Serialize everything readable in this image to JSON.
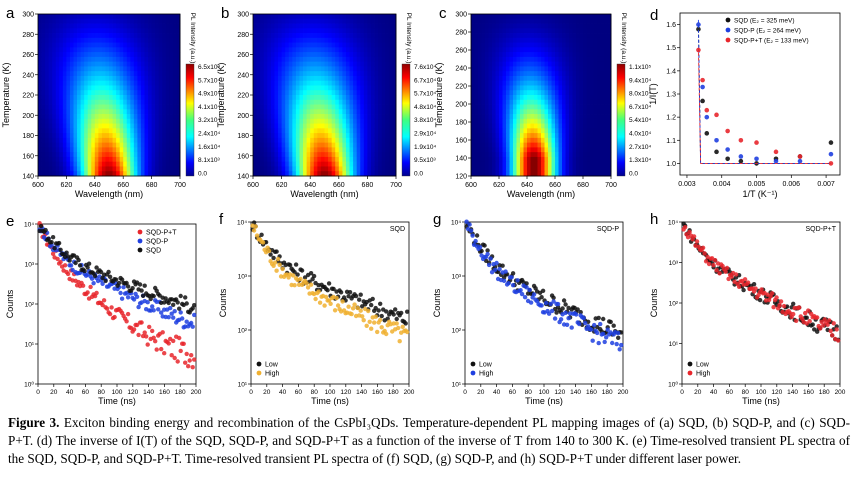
{
  "figure": {
    "mapping_panels": [
      {
        "letter": "a",
        "ylabel": "Temperature (K)",
        "xlabel": "Wavelength (nm)",
        "cbar_label": "PL Intensity (a.u.)",
        "cbar_ticks": [
          "6.5x10⁴",
          "5.7x10⁴",
          "4.9x10⁴",
          "4.1x10⁴",
          "3.2x10⁴",
          "2.4x10⁴",
          "1.6x10⁴",
          "8.1x10³",
          "0.0"
        ]
      },
      {
        "letter": "b",
        "ylabel": "Temperature (K)",
        "xlabel": "Wavelength (nm)",
        "cbar_label": "PL Intensity (a.u.)",
        "cbar_ticks": [
          "7.6x10⁴",
          "6.7x10⁴",
          "5.7x10⁴",
          "4.8x10⁴",
          "3.8x10⁴",
          "2.9x10⁴",
          "1.9x10⁴",
          "9.5x10³",
          "0.0"
        ]
      },
      {
        "letter": "c",
        "ylabel": "Temperature (K)",
        "xlabel": "Wavelength (nm)",
        "cbar_label": "PL Intensity (a.u.)",
        "cbar_ticks": [
          "1.1x10⁵",
          "9.4x10⁴",
          "8.0x10⁴",
          "6.7x10⁴",
          "5.4x10⁴",
          "4.0x10⁴",
          "2.7x10⁴",
          "1.3x10⁴",
          "0.0"
        ]
      }
    ],
    "panel_d": {
      "letter": "d",
      "ylabel": "1/I(T)",
      "xlabel": "1/T (K⁻¹)",
      "legend": [
        "SQD (E₂ = 325 meV)",
        "SQD-P (E₂ = 264 meV)",
        "SQD-P+T (E₂ = 133 meV)"
      ]
    },
    "decay_panels": [
      {
        "letter": "e",
        "title": "",
        "legend": [
          "SQD-P+T",
          "SQD-P",
          "SQD"
        ]
      },
      {
        "letter": "f",
        "title": "SQD",
        "legend": [
          "Low",
          "High"
        ]
      },
      {
        "letter": "g",
        "title": "SQD-P",
        "legend": [
          "Low",
          "High"
        ]
      },
      {
        "letter": "h",
        "title": "SQD-P+T",
        "legend": [
          "Low",
          "High"
        ]
      }
    ],
    "decay_xlabel": "Time (ns)",
    "decay_ylabel": "Counts",
    "colors": {
      "sqd": "#111111",
      "sqd_p": "#1f3fe0",
      "sqd_pt": "#e8262c",
      "high_f": "#f0b030"
    },
    "chart_data": [
      {
        "type": "heatmap",
        "panel": "a",
        "xlabel": "Wavelength (nm)",
        "ylabel": "Temperature (K)",
        "xlim": [
          600,
          700
        ],
        "ylim": [
          140,
          300
        ],
        "x_ticks": [
          600,
          620,
          640,
          660,
          680,
          700
        ],
        "y_ticks": [
          140,
          160,
          180,
          200,
          220,
          240,
          260,
          280,
          300
        ],
        "peak_nm_at_140K": 650,
        "peak_nm_at_300K": 640,
        "zmax": 65000
      },
      {
        "type": "heatmap",
        "panel": "b",
        "xlabel": "Wavelength (nm)",
        "ylabel": "Temperature (K)",
        "xlim": [
          600,
          700
        ],
        "ylim": [
          140,
          300
        ],
        "x_ticks": [
          600,
          620,
          640,
          660,
          680,
          700
        ],
        "y_ticks": [
          140,
          160,
          180,
          200,
          220,
          240,
          260,
          280,
          300
        ],
        "peak_nm_at_140K": 650,
        "peak_nm_at_300K": 640,
        "zmax": 76000
      },
      {
        "type": "heatmap",
        "panel": "c",
        "xlabel": "Wavelength (nm)",
        "ylabel": "Temperature (K)",
        "xlim": [
          600,
          700
        ],
        "ylim": [
          120,
          300
        ],
        "x_ticks": [
          600,
          620,
          640,
          660,
          680,
          700
        ],
        "y_ticks": [
          120,
          140,
          160,
          180,
          200,
          220,
          240,
          260,
          280,
          300
        ],
        "peak_nm_at_140K": 645,
        "peak_nm_at_300K": 640,
        "zmax": 110000
      },
      {
        "type": "scatter",
        "panel": "d",
        "xlabel": "1/T (K⁻¹)",
        "ylabel": "1/I(T)",
        "xlim": [
          0.0028,
          0.0074
        ],
        "ylim": [
          0.95,
          1.65
        ],
        "x_ticks": [
          0.003,
          0.004,
          0.005,
          0.006,
          0.007
        ],
        "y_ticks": [
          1.0,
          1.1,
          1.2,
          1.3,
          1.4,
          1.5,
          1.6
        ],
        "series": [
          {
            "name": "SQD (E₂ = 325 meV)",
            "x": [
              0.00333,
              0.00345,
              0.00357,
              0.00385,
              0.00417,
              0.00455,
              0.005,
              0.00556,
              0.00625,
              0.00714
            ],
            "y": [
              1.58,
              1.27,
              1.13,
              1.05,
              1.02,
              1.01,
              1.0,
              1.02,
              1.03,
              1.09
            ]
          },
          {
            "name": "SQD-P (E₂ = 264 meV)",
            "x": [
              0.00333,
              0.00345,
              0.00357,
              0.00385,
              0.00417,
              0.00455,
              0.005,
              0.00556,
              0.00625,
              0.00714
            ],
            "y": [
              1.6,
              1.33,
              1.2,
              1.1,
              1.06,
              1.03,
              1.02,
              1.01,
              1.01,
              1.04
            ]
          },
          {
            "name": "SQD-P+T (E₂ = 133 meV)",
            "x": [
              0.00333,
              0.00345,
              0.00357,
              0.00385,
              0.00417,
              0.00455,
              0.005,
              0.00556,
              0.00625,
              0.00714
            ],
            "y": [
              1.49,
              1.36,
              1.23,
              1.21,
              1.14,
              1.1,
              1.09,
              1.05,
              1.03,
              1.0
            ]
          }
        ]
      },
      {
        "type": "scatter",
        "panel": "e",
        "xlabel": "Time (ns)",
        "ylabel": "Counts",
        "y_scale": "log",
        "xlim": [
          0,
          200
        ],
        "ylim": [
          1,
          10000
        ],
        "x_ticks": [
          0,
          20,
          40,
          60,
          80,
          100,
          120,
          140,
          160,
          180,
          200
        ],
        "series": [
          {
            "name": "SQD-P+T",
            "tau": [
              10,
              28
            ],
            "amp": [
              0.82,
              0.18
            ],
            "floor": 4
          },
          {
            "name": "SQD-P",
            "tau": [
              12,
              45
            ],
            "amp": [
              0.8,
              0.2
            ],
            "floor": 8
          },
          {
            "name": "SQD",
            "tau": [
              14,
              60
            ],
            "amp": [
              0.8,
              0.2
            ],
            "floor": 10
          }
        ]
      },
      {
        "type": "scatter",
        "panel": "f",
        "xlabel": "Time (ns)",
        "ylabel": "Counts",
        "y_scale": "log",
        "xlim": [
          0,
          200
        ],
        "ylim": [
          10,
          10000
        ],
        "series": [
          {
            "name": "Low",
            "tau": [
              14,
              65
            ],
            "amp": [
              0.75,
              0.25
            ],
            "floor": 35
          },
          {
            "name": "High",
            "tau": [
              12,
              55
            ],
            "amp": [
              0.8,
              0.2
            ],
            "floor": 22
          }
        ]
      },
      {
        "type": "scatter",
        "panel": "g",
        "xlabel": "Time (ns)",
        "ylabel": "Counts",
        "y_scale": "log",
        "xlim": [
          0,
          200
        ],
        "ylim": [
          10,
          10000
        ],
        "series": [
          {
            "name": "Low",
            "tau": [
              14,
              55
            ],
            "amp": [
              0.78,
              0.22
            ],
            "floor": 25
          },
          {
            "name": "High",
            "tau": [
              13,
              50
            ],
            "amp": [
              0.8,
              0.2
            ],
            "floor": 18
          }
        ]
      },
      {
        "type": "scatter",
        "panel": "h",
        "xlabel": "Time (ns)",
        "ylabel": "Counts",
        "y_scale": "log",
        "xlim": [
          0,
          200
        ],
        "ylim": [
          1,
          10000
        ],
        "series": [
          {
            "name": "Low",
            "tau": [
              11,
              40
            ],
            "amp": [
              0.8,
              0.2
            ],
            "floor": 3.5
          },
          {
            "name": "High",
            "tau": [
              11,
              40
            ],
            "amp": [
              0.8,
              0.2
            ],
            "floor": 3.5
          }
        ]
      }
    ]
  },
  "caption": {
    "label": "Figure 3.",
    "text": "Exciton binding energy and recombination of the CsPbI₃QDs. Temperature-dependent PL mapping images of (a) SQD, (b) SQD-P, and (c) SQD-P+T. (d) The inverse of I(T) of the SQD, SQD-P, and SQD-P+T as a function of the inverse of T from 140 to 300 K. (e) Time-resolved transient PL spectra of the SQD, SQD-P, and SQD-P+T. Time-resolved transient PL spectra of (f) SQD, (g) SQD-P, and (h) SQD-P+T under different laser power."
  }
}
